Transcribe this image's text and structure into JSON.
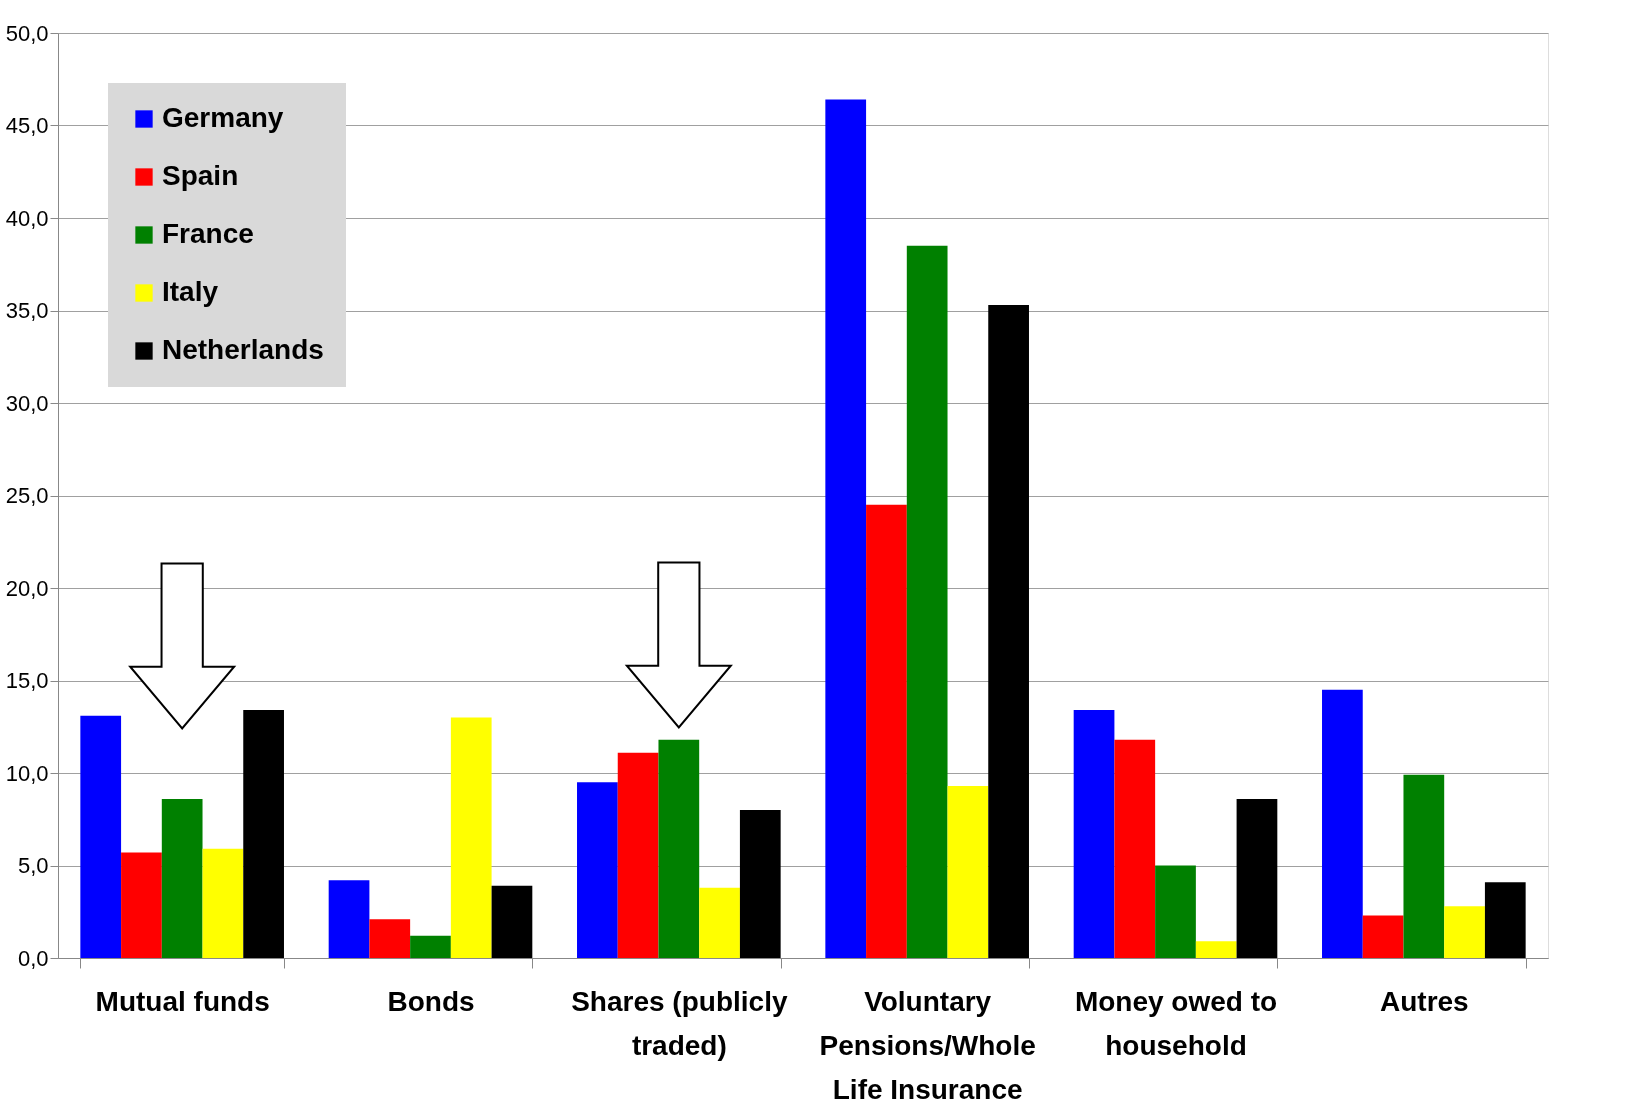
{
  "chart_data": {
    "type": "bar",
    "categories": [
      "Mutual funds",
      "Bonds",
      "Shares (publicly traded)",
      "Voluntary Pensions/Whole Life Insurance",
      "Money owed to household",
      "Autres"
    ],
    "series": [
      {
        "name": "Germany",
        "color": "#0000ff",
        "values": [
          13.1,
          4.2,
          9.5,
          46.4,
          13.4,
          14.5
        ]
      },
      {
        "name": "Spain",
        "color": "#ff0000",
        "values": [
          5.7,
          2.1,
          11.1,
          24.5,
          11.8,
          2.3
        ]
      },
      {
        "name": "France",
        "color": "#008000",
        "values": [
          8.6,
          1.2,
          11.8,
          38.5,
          5.0,
          9.9
        ]
      },
      {
        "name": "Italy",
        "color": "#ffff00",
        "values": [
          5.9,
          13.0,
          3.8,
          9.3,
          0.9,
          2.8
        ]
      },
      {
        "name": "Netherlands",
        "color": "#000000",
        "values": [
          13.4,
          3.9,
          8.0,
          35.3,
          8.6,
          4.1
        ]
      }
    ],
    "ylim": [
      0,
      50
    ],
    "yticks": [
      {
        "value": 0,
        "label": "0,0"
      },
      {
        "value": 5,
        "label": "5,0"
      },
      {
        "value": 10,
        "label": "10,0"
      },
      {
        "value": 15,
        "label": "15,0"
      },
      {
        "value": 20,
        "label": "20,0"
      },
      {
        "value": 25,
        "label": "25,0"
      },
      {
        "value": 30,
        "label": "30,0"
      },
      {
        "value": 35,
        "label": "35,0"
      },
      {
        "value": 40,
        "label": "40,0"
      },
      {
        "value": 45,
        "label": "45,0"
      },
      {
        "value": 50,
        "label": "50,0"
      }
    ],
    "grid": "y",
    "legend": "top left"
  }
}
